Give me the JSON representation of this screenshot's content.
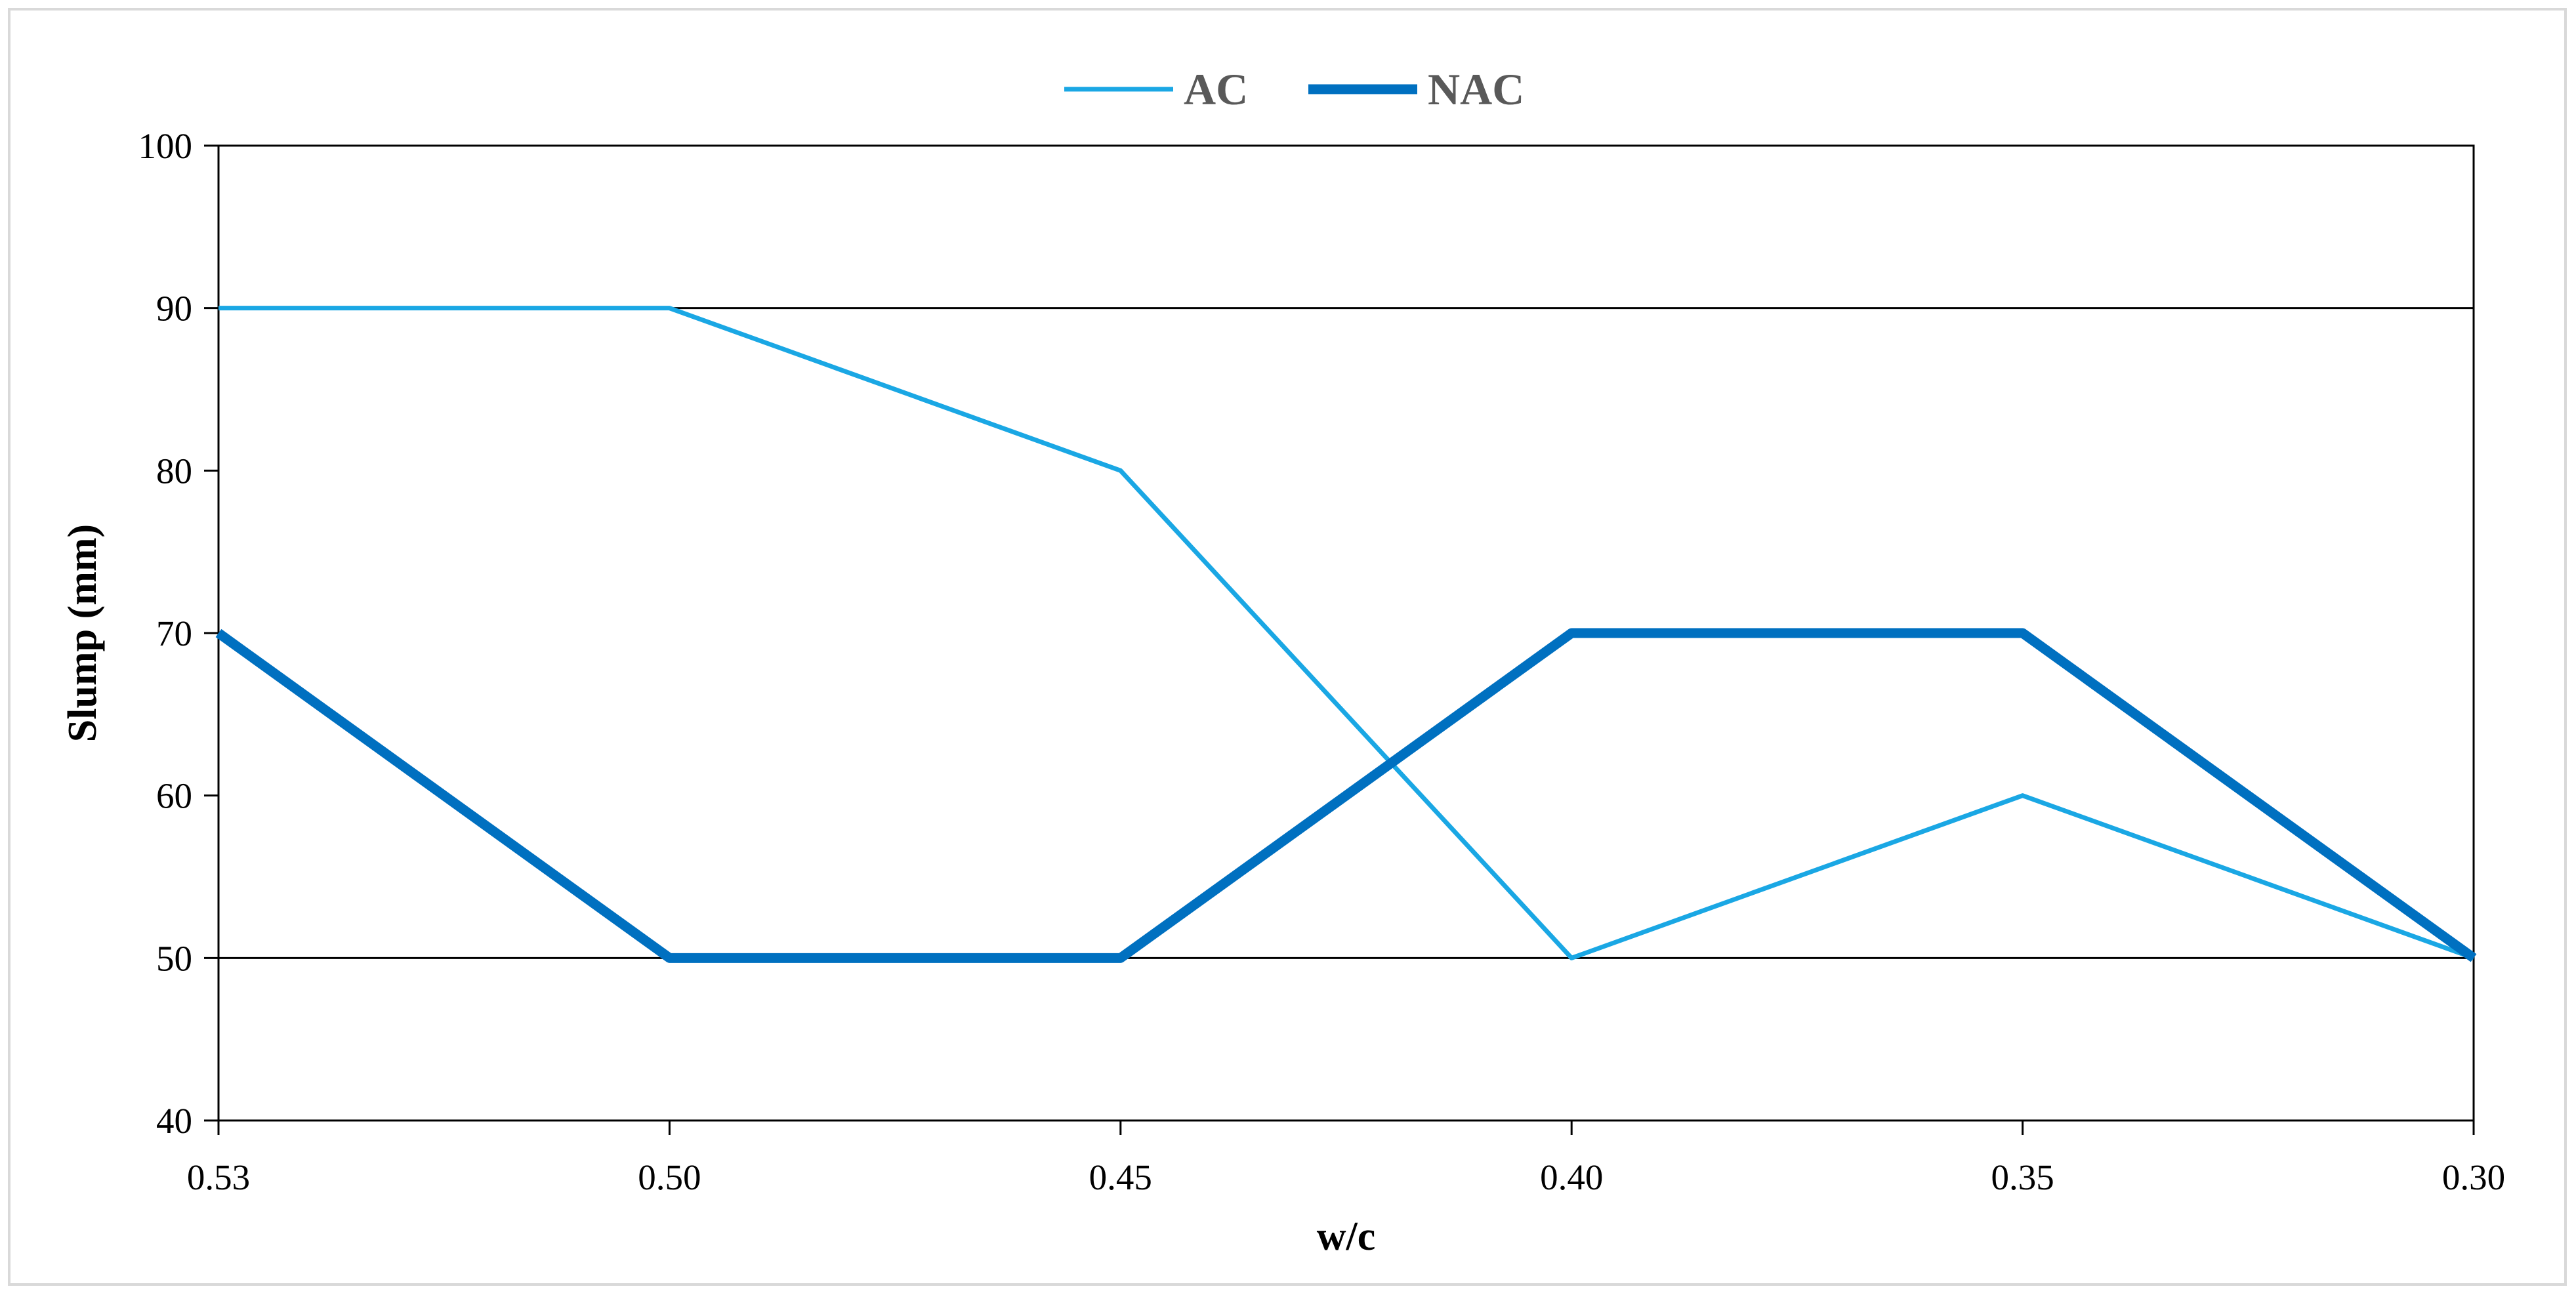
{
  "chart_data": {
    "type": "line",
    "categories": [
      "0.53",
      "0.50",
      "0.45",
      "0.40",
      "0.35",
      "0.30"
    ],
    "series": [
      {
        "name": "AC",
        "values": [
          90,
          90,
          80,
          50,
          60,
          50
        ],
        "color": "#1aa7e4"
      },
      {
        "name": "NAC",
        "values": [
          70,
          50,
          50,
          70,
          70,
          50
        ],
        "color": "#0070c0"
      }
    ],
    "xlabel": "w/c",
    "ylabel": "Slump (mm)",
    "ylim": [
      40,
      100
    ],
    "yticks": [
      "40",
      "50",
      "60",
      "70",
      "80",
      "90",
      "100"
    ],
    "gridlines_at": [
      50,
      90
    ],
    "legend": {
      "position": "top",
      "entries": [
        "AC",
        "NAC"
      ]
    }
  }
}
